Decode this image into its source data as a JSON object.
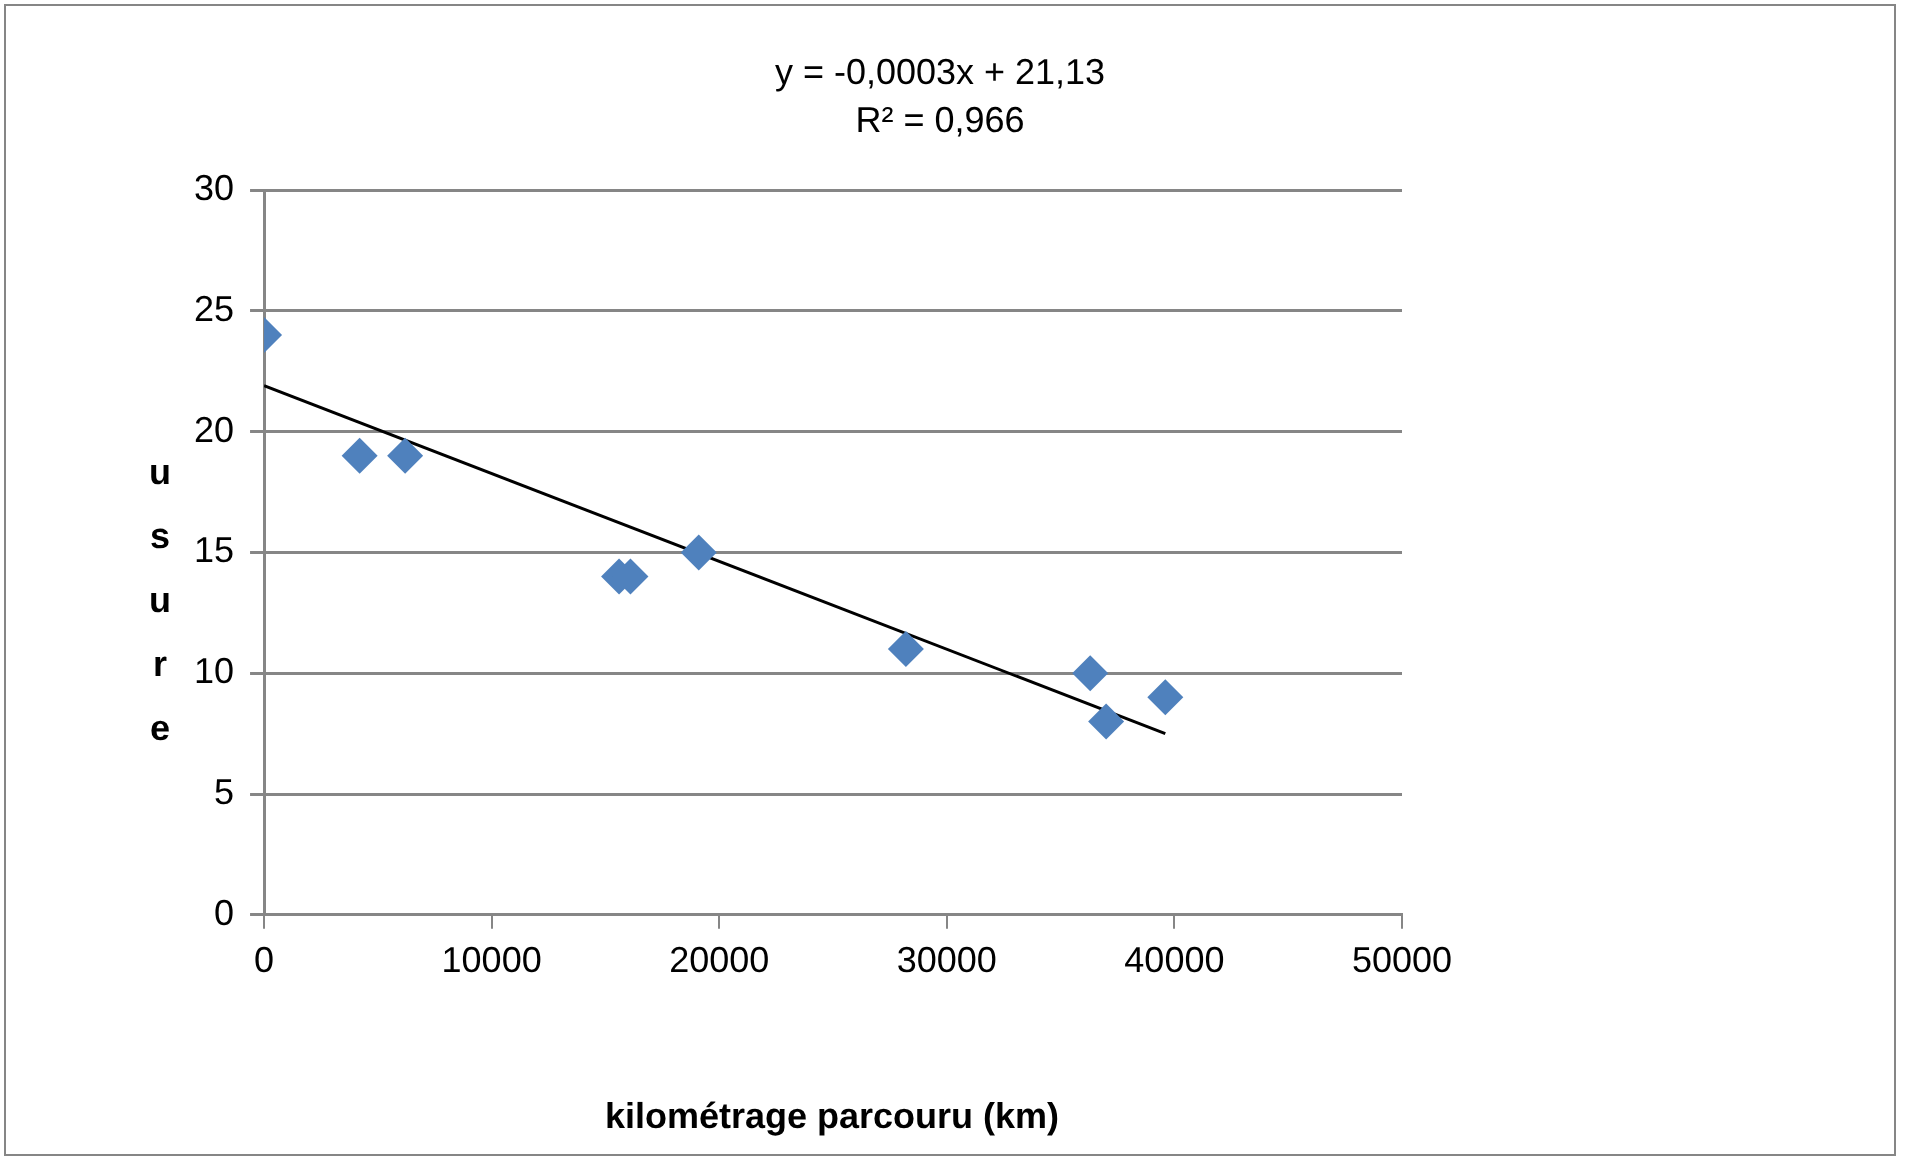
{
  "chart_data": {
    "type": "scatter",
    "xlabel": "kilométrage parcouru (km)",
    "ylabel": "usure",
    "annotations": [
      "y = -0,0003x + 21,13",
      "R² = 0,966"
    ],
    "series": [
      {
        "type": "scatter",
        "color": "#4f81bd",
        "marker": "diamond",
        "x": [
          0,
          4200,
          6200,
          15600,
          16100,
          19100,
          28200,
          36300,
          37000,
          39600
        ],
        "values": [
          24,
          19,
          19,
          14,
          14,
          15,
          11,
          10,
          8,
          9
        ]
      },
      {
        "type": "line",
        "color": "#000000",
        "marker": "none",
        "x": [
          0,
          39600
        ],
        "values": [
          21.9,
          7.5
        ]
      }
    ],
    "xlim": [
      0,
      50000
    ],
    "xticks": [
      0,
      10000,
      20000,
      30000,
      40000,
      50000
    ],
    "ylim": [
      0,
      30
    ],
    "yticks": [
      0,
      5,
      10,
      15,
      20,
      25,
      30
    ],
    "grid": "y",
    "legend": false
  }
}
